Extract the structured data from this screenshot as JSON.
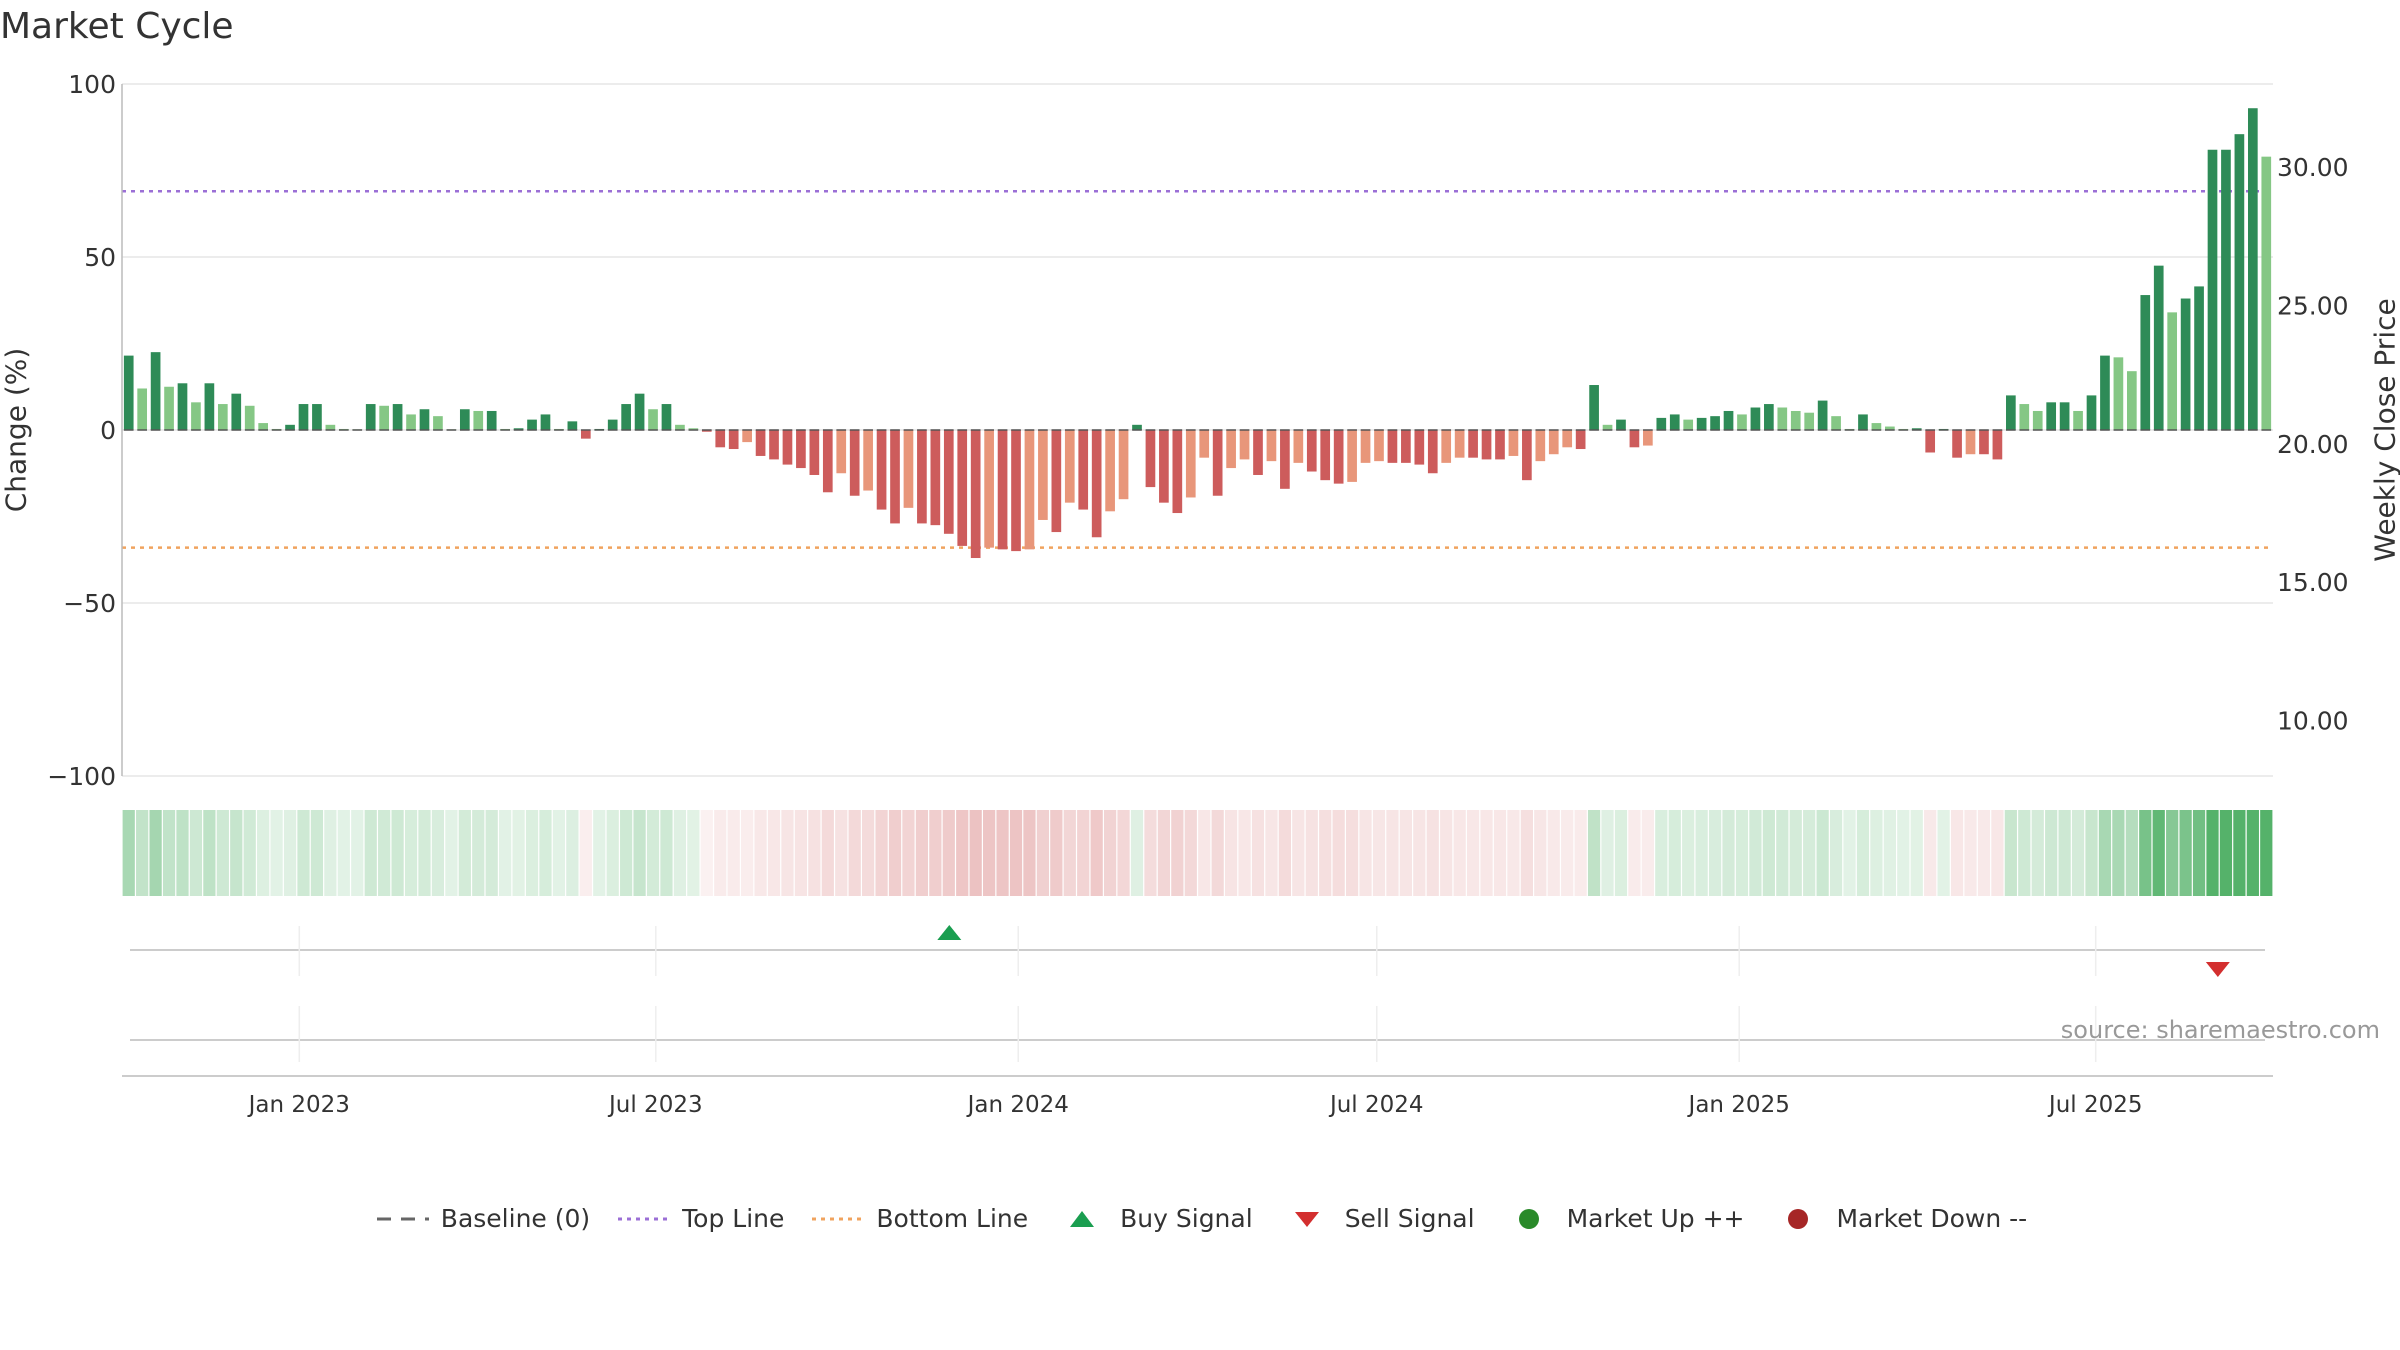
{
  "page": {
    "title": "Market Cycle",
    "source": "source: sharemaestro.com"
  },
  "legend": [
    {
      "label": "Baseline (0)",
      "icon": "dash-line",
      "color": "#666666"
    },
    {
      "label": "Top Line",
      "icon": "dotted-line",
      "color": "#9b6fd6"
    },
    {
      "label": "Bottom Line",
      "icon": "dotted-line",
      "color": "#f0a35e"
    },
    {
      "label": "Buy Signal",
      "icon": "triangle-up",
      "color": "#1a9e50"
    },
    {
      "label": "Sell Signal",
      "icon": "triangle-down",
      "color": "#d32f2f"
    },
    {
      "label": "Market Up ++",
      "icon": "circle",
      "color": "#2a8a2a"
    },
    {
      "label": "Market Down --",
      "icon": "circle",
      "color": "#a62626"
    }
  ],
  "chart_data": {
    "type": "bar",
    "title": "Market Cycle",
    "ylabel": "Change (%)",
    "ylabel_right": "Weekly Close Price",
    "ylim": [
      -100,
      100
    ],
    "ylim_right": [
      8,
      33
    ],
    "yticks": [
      "100",
      "50",
      "0",
      "−50",
      "−100"
    ],
    "yticks_values": [
      100,
      50,
      0,
      -50,
      -100
    ],
    "yticks_right": [
      "30.00",
      "25.00",
      "20.00",
      "15.00",
      "10.00"
    ],
    "yticks_right_values": [
      30,
      25,
      20,
      15,
      10
    ],
    "xlim": [
      "2022-10-03",
      "2025-09-29"
    ],
    "xticks": [
      "Jan 2023",
      "Jul 2023",
      "Jan 2024",
      "Jul 2024",
      "Jan 2025",
      "Jul 2025"
    ],
    "xticks_dates": [
      "2023-01-01",
      "2023-07-01",
      "2024-01-01",
      "2024-07-01",
      "2025-01-01",
      "2025-07-01"
    ],
    "top_line": 69,
    "bottom_line": -34,
    "grid": true,
    "legend_position": "bottom",
    "week_start": "2022-10-03",
    "values": [
      21.5,
      12,
      22.5,
      12.5,
      13.5,
      8,
      13.5,
      7.5,
      10.5,
      7,
      2,
      0.3,
      1.5,
      7.5,
      7.5,
      1.5,
      0.3,
      0.2,
      7.5,
      7,
      7.5,
      4.5,
      6,
      4,
      0.2,
      6,
      5.5,
      5.5,
      0.3,
      0.5,
      3,
      4.5,
      0.3,
      2.5,
      -2.5,
      0.3,
      3,
      7.5,
      10.5,
      6,
      7.5,
      1.5,
      0.5,
      -0.5,
      -5,
      -5.5,
      -3.5,
      -7.5,
      -8.5,
      -10,
      -11,
      -13,
      -18,
      -12.5,
      -19,
      -17.5,
      -23,
      -27,
      -22.5,
      -27,
      -27.5,
      -30,
      -33.5,
      -37,
      -34,
      -34.5,
      -35,
      -34.5,
      -26,
      -29.5,
      -21,
      -23,
      -31,
      -23.5,
      -20,
      1.5,
      -16.5,
      -21,
      -24,
      -19.5,
      -8,
      -19,
      -11,
      -8.5,
      -13,
      -9,
      -17,
      -9.5,
      -12,
      -14.5,
      -15.5,
      -15,
      -9.5,
      -9,
      -9.5,
      -9.5,
      -10,
      -12.5,
      -9.5,
      -8,
      -8,
      -8.5,
      -8.5,
      -7.5,
      -14.5,
      -9,
      -7,
      -5,
      -5.5,
      13,
      1.5,
      3,
      -5,
      -4.5,
      3.5,
      4.5,
      3,
      3.5,
      4,
      5.5,
      4.5,
      6.5,
      7.5,
      6.5,
      5.5,
      5,
      8.5,
      4,
      0.3,
      4.5,
      2,
      1,
      0.3,
      0.5,
      -6.5,
      0.3,
      -8,
      -7,
      -7,
      -8.5,
      10,
      7.5,
      5.5,
      8,
      8,
      5.5,
      10,
      21.5,
      21,
      17,
      39,
      47.5,
      34,
      38,
      41.5,
      81,
      81,
      85.5,
      93,
      79
    ],
    "signals": [
      {
        "type": "Buy Signal",
        "date": "2023-11-27"
      },
      {
        "type": "Sell Signal",
        "date": "2025-09-01"
      }
    ]
  }
}
